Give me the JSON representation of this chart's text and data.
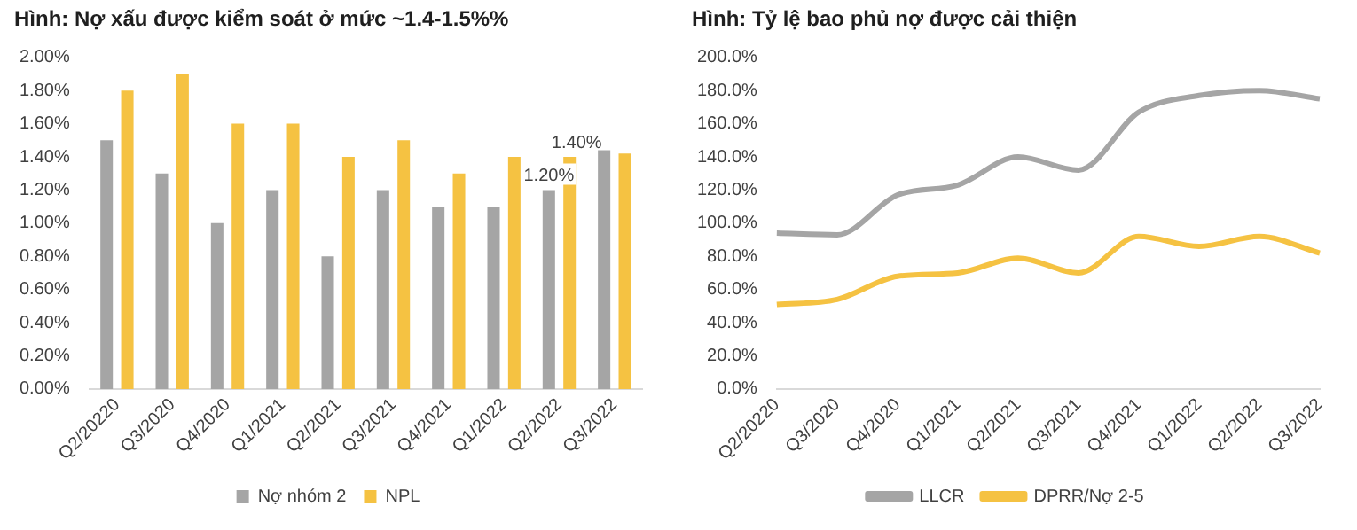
{
  "chart_data": [
    {
      "type": "bar",
      "title": "Hình: Nợ xấu được kiểm soát ở mức ~1.4-1.5%%",
      "categories": [
        "Q2/20220",
        "Q3/2020",
        "Q4/2020",
        "Q1/2021",
        "Q2/2021",
        "Q3/2021",
        "Q4/2021",
        "Q1/2022",
        "Q2/2022",
        "Q3/2022"
      ],
      "series": [
        {
          "name": "Nợ nhóm 2",
          "color": "#a5a5a5",
          "values": [
            1.5,
            1.3,
            1.0,
            1.2,
            0.8,
            1.2,
            1.1,
            1.1,
            1.2,
            1.44
          ],
          "value_labels": [
            null,
            null,
            null,
            null,
            null,
            null,
            null,
            null,
            "1.20%",
            null
          ]
        },
        {
          "name": "NPL",
          "color": "#f5c242",
          "values": [
            1.8,
            1.9,
            1.6,
            1.6,
            1.4,
            1.5,
            1.3,
            1.4,
            1.4,
            1.42
          ],
          "value_labels": [
            null,
            null,
            null,
            null,
            null,
            null,
            null,
            null,
            "1.40%",
            null
          ]
        }
      ],
      "ylim": [
        0,
        2
      ],
      "yticks": [
        {
          "value": 0,
          "label": "0.00%"
        },
        {
          "value": 0.2,
          "label": "0.20%"
        },
        {
          "value": 0.4,
          "label": "0.40%"
        },
        {
          "value": 0.6,
          "label": "0.60%"
        },
        {
          "value": 0.8,
          "label": "0.80%"
        },
        {
          "value": 1,
          "label": "1.00%"
        },
        {
          "value": 1.2,
          "label": "1.20%"
        },
        {
          "value": 1.4,
          "label": "1.40%"
        },
        {
          "value": 1.6,
          "label": "1.60%"
        },
        {
          "value": 1.8,
          "label": "1.80%"
        },
        {
          "value": 2,
          "label": "2.00%"
        }
      ],
      "grid": false,
      "legend": "bottom"
    },
    {
      "type": "line",
      "title": "Hình: Tỷ lệ bao phủ nợ được cải thiện",
      "categories": [
        "Q2/20220",
        "Q3/2020",
        "Q4/2020",
        "Q1/2021",
        "Q2/2021",
        "Q3/2021",
        "Q4/2021",
        "Q1/2022",
        "Q2/2022",
        "Q3/2022"
      ],
      "series": [
        {
          "name": "LLCR",
          "color": "#a5a5a5",
          "values": [
            94,
            93,
            117,
            123,
            140,
            132,
            167,
            177,
            180,
            175
          ]
        },
        {
          "name": "DPRR/Nợ 2-5",
          "color": "#f5c242",
          "values": [
            51,
            54,
            68,
            70,
            79,
            70,
            92,
            86,
            92,
            82
          ]
        }
      ],
      "ylim": [
        0,
        200
      ],
      "yticks": [
        {
          "value": 0,
          "label": "0.0%"
        },
        {
          "value": 20,
          "label": "20.0%"
        },
        {
          "value": 40,
          "label": "40.0%"
        },
        {
          "value": 60,
          "label": "60.0%"
        },
        {
          "value": 80,
          "label": "80.0%"
        },
        {
          "value": 100,
          "label": "100.0%"
        },
        {
          "value": 120,
          "label": "120.0%"
        },
        {
          "value": 140,
          "label": "140.0%"
        },
        {
          "value": 160,
          "label": "160.0%"
        },
        {
          "value": 180,
          "label": "180.0%"
        },
        {
          "value": 200,
          "label": "200.0%"
        }
      ],
      "grid": false,
      "legend": "bottom",
      "marker": "none",
      "line_style": "solid"
    }
  ]
}
